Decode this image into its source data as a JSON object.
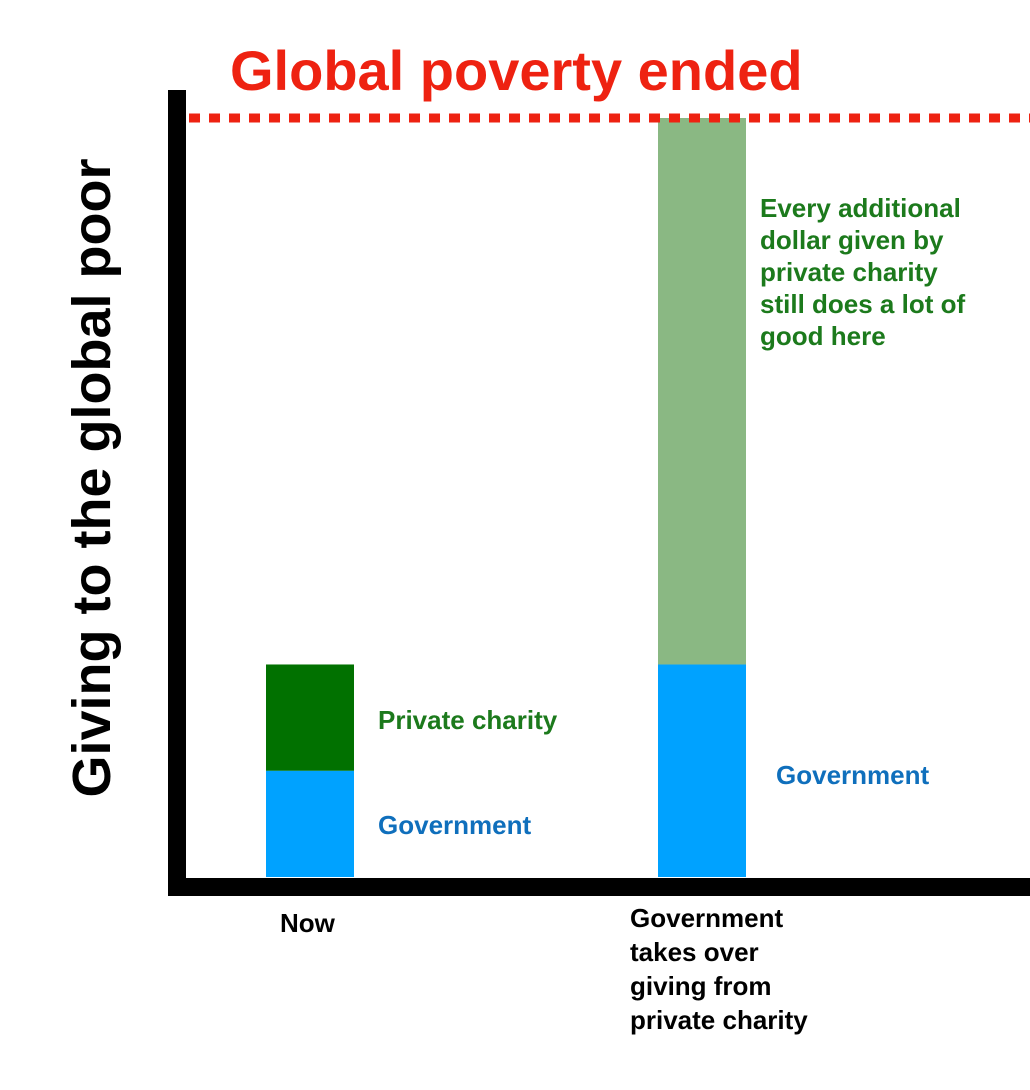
{
  "chart_data": {
    "type": "bar",
    "stacked": true,
    "ylabel": "Giving to the global poor",
    "xlabel": "",
    "grid": false,
    "categories": [
      "Now",
      "Government takes over giving from private charity"
    ],
    "category_lines": [
      [
        "Now"
      ],
      [
        "Government",
        "takes over",
        "giving from",
        "private charity"
      ]
    ],
    "ylim": [
      0,
      100
    ],
    "series": [
      {
        "name": "Government",
        "values": [
          14,
          28
        ],
        "colors": [
          "#00a2ff",
          "#00a2ff"
        ],
        "labels": [
          "Government",
          "Government"
        ],
        "label_color": "#0f6fbc"
      },
      {
        "name": "Private charity",
        "values": [
          14,
          72
        ],
        "colors": [
          "#017100",
          "#8ab883"
        ],
        "labels": [
          "Private charity",
          "Every additional dollar given by private charity still does a lot of good here"
        ],
        "label_lines": [
          [
            "Private charity"
          ],
          [
            "Every additional",
            "dollar given by",
            "private charity",
            "still does a lot of",
            "good here"
          ]
        ],
        "label_color": "#1c7a1c"
      }
    ],
    "reference_line": {
      "value": 100,
      "label": "Global poverty ended",
      "style": "dotted",
      "color": "#ee2211"
    },
    "axis_color": "#000000",
    "category_label_color": "#000000"
  }
}
